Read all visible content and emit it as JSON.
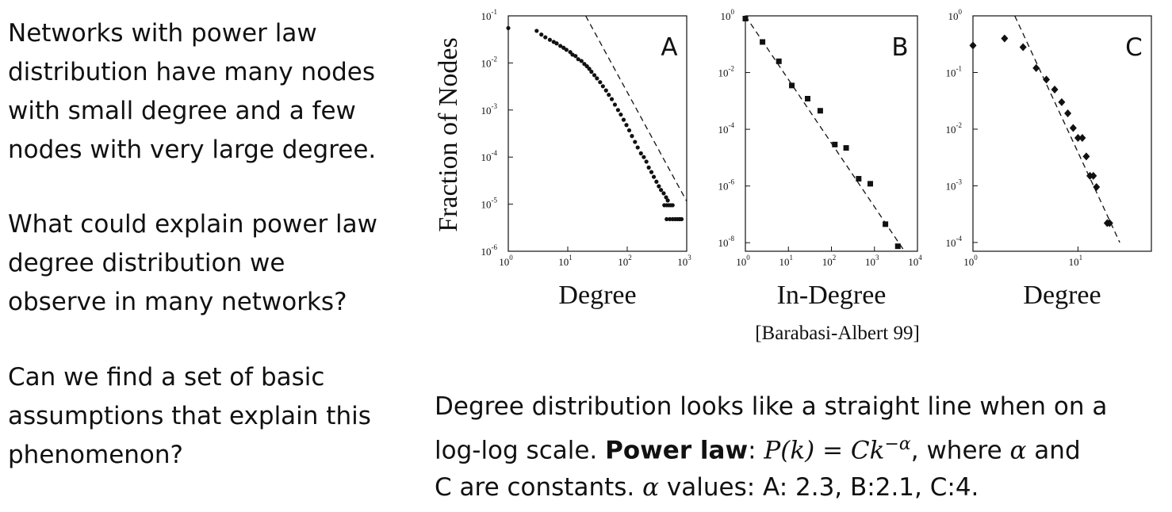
{
  "left_text": {
    "p1": [
      "Networks with power law",
      "distribution have many nodes",
      "with small degree and a few",
      "nodes with very large degree."
    ],
    "p2": [
      "What could explain power law",
      "degree distribution we",
      "observe in many networks?"
    ],
    "p3": [
      "Can we find a set of basic",
      "assumptions that explain this",
      "phenomenon?"
    ]
  },
  "citation": "[Barabasi-Albert 99]",
  "bottom_text": {
    "line1": "Degree distribution looks like a straight line when on a",
    "line2_pre": "log-log scale. ",
    "power_law": "Power law",
    "colon": ": ",
    "formula": "P(k) = Ck",
    "exponent": "−α",
    "line2_post": ", where ",
    "alpha": "α",
    "and": " and",
    "line3_c": "C",
    "line3_mid": " are constants. ",
    "line3_alpha": "α",
    "line3_values": " values:  A: 2.3, B:2.1, C:4."
  },
  "chart_data": [
    {
      "type": "scatter",
      "panel_label": "A",
      "title": "",
      "xlabel": "Degree",
      "ylabel": "Fraction of Nodes",
      "xscale": "log",
      "yscale": "log",
      "xlim": [
        1,
        1000
      ],
      "ylim": [
        1e-06,
        0.1
      ],
      "xticks": [
        {
          "v": 1,
          "label": "10",
          "exp": "0"
        },
        {
          "v": 10,
          "label": "10",
          "exp": "1"
        },
        {
          "v": 100,
          "label": "10",
          "exp": "2"
        },
        {
          "v": 1000,
          "label": "10",
          "exp": "3"
        }
      ],
      "yticks": [
        {
          "v": 1e-06,
          "label": "10",
          "exp": "-6"
        },
        {
          "v": 1e-05,
          "label": "10",
          "exp": "-5"
        },
        {
          "v": 0.0001,
          "label": "10",
          "exp": "-4"
        },
        {
          "v": 0.001,
          "label": "10",
          "exp": "-3"
        },
        {
          "v": 0.01,
          "label": "10",
          "exp": "-2"
        },
        {
          "v": 0.1,
          "label": "10",
          "exp": "-1"
        }
      ],
      "marker": "circle",
      "points": [
        [
          1,
          0.055
        ],
        [
          3,
          0.048
        ],
        [
          3.6,
          0.04
        ],
        [
          4.2,
          0.035
        ],
        [
          5,
          0.031
        ],
        [
          5.8,
          0.028
        ],
        [
          6.5,
          0.026
        ],
        [
          7.5,
          0.023
        ],
        [
          8.5,
          0.021
        ],
        [
          9.5,
          0.019
        ],
        [
          11,
          0.017
        ],
        [
          12,
          0.015
        ],
        [
          13.5,
          0.014
        ],
        [
          15,
          0.012
        ],
        [
          17,
          0.011
        ],
        [
          19,
          0.0095
        ],
        [
          21,
          0.0085
        ],
        [
          23,
          0.0075
        ],
        [
          25,
          0.0065
        ],
        [
          28,
          0.0055
        ],
        [
          31,
          0.0047
        ],
        [
          35,
          0.0039
        ],
        [
          39,
          0.0032
        ],
        [
          44,
          0.0026
        ],
        [
          49,
          0.0021
        ],
        [
          55,
          0.0017
        ],
        [
          62,
          0.0013
        ],
        [
          70,
          0.001
        ],
        [
          78,
          0.0008
        ],
        [
          87,
          0.00062
        ],
        [
          97,
          0.00048
        ],
        [
          108,
          0.00037
        ],
        [
          120,
          0.00028
        ],
        [
          135,
          0.00021
        ],
        [
          150,
          0.00016
        ],
        [
          170,
          0.00012
        ],
        [
          190,
          0.0001
        ],
        [
          210,
          8e-05
        ],
        [
          230,
          6e-05
        ],
        [
          255,
          4.8e-05
        ],
        [
          280,
          3.8e-05
        ],
        [
          310,
          3e-05
        ],
        [
          340,
          2.4e-05
        ],
        [
          370,
          2e-05
        ],
        [
          410,
          1.7e-05
        ],
        [
          450,
          1.4e-05
        ],
        [
          480,
          1.2e-05
        ],
        [
          420,
          9.5e-06
        ],
        [
          460,
          9.5e-06
        ],
        [
          500,
          9.5e-06
        ],
        [
          540,
          9.5e-06
        ],
        [
          580,
          9.5e-06
        ],
        [
          460,
          4.8e-06
        ],
        [
          520,
          4.8e-06
        ],
        [
          580,
          4.8e-06
        ],
        [
          640,
          4.8e-06
        ],
        [
          700,
          4.8e-06
        ],
        [
          760,
          4.8e-06
        ],
        [
          820,
          4.8e-06
        ]
      ],
      "fit_line": {
        "style": "dashed",
        "from": [
          20,
          0.1
        ],
        "to": [
          1000,
          1.15e-05
        ]
      },
      "alpha": 2.3
    },
    {
      "type": "scatter",
      "panel_label": "B",
      "title": "",
      "xlabel": "In-Degree",
      "ylabel": "",
      "xscale": "log",
      "yscale": "log",
      "xlim": [
        1,
        10000
      ],
      "ylim": [
        5e-09,
        1
      ],
      "xticks": [
        {
          "v": 1,
          "label": "10",
          "exp": "0"
        },
        {
          "v": 10,
          "label": "10",
          "exp": "1"
        },
        {
          "v": 100,
          "label": "10",
          "exp": "2"
        },
        {
          "v": 1000,
          "label": "10",
          "exp": "3"
        },
        {
          "v": 10000,
          "label": "10",
          "exp": "4"
        }
      ],
      "yticks": [
        {
          "v": 1,
          "label": "10",
          "exp": "0"
        },
        {
          "v": 0.01,
          "label": "10",
          "exp": "-2"
        },
        {
          "v": 0.0001,
          "label": "10",
          "exp": "-4"
        },
        {
          "v": 1e-06,
          "label": "10",
          "exp": "-6"
        },
        {
          "v": 1e-08,
          "label": "10",
          "exp": "-8"
        }
      ],
      "marker": "square",
      "points": [
        [
          1,
          0.8
        ],
        [
          2.5,
          0.12
        ],
        [
          6,
          0.025
        ],
        [
          12,
          0.0035
        ],
        [
          28,
          0.0012
        ],
        [
          55,
          0.00045
        ],
        [
          120,
          2.9e-05
        ],
        [
          220,
          2.2e-05
        ],
        [
          430,
          1.8e-06
        ],
        [
          800,
          1.2e-06
        ],
        [
          1800,
          4.5e-08
        ],
        [
          3500,
          7.5e-09
        ]
      ],
      "fit_line": {
        "style": "dashed",
        "from": [
          1,
          1
        ],
        "to": [
          5000,
          5e-09
        ]
      },
      "alpha": 2.1
    },
    {
      "type": "scatter",
      "panel_label": "C",
      "title": "",
      "xlabel": "Degree",
      "ylabel": "",
      "xscale": "log",
      "yscale": "log",
      "xlim": [
        1,
        50
      ],
      "ylim": [
        7e-05,
        1
      ],
      "xticks": [
        {
          "v": 1,
          "label": "10",
          "exp": "0"
        },
        {
          "v": 10,
          "label": "10",
          "exp": "1"
        }
      ],
      "yticks": [
        {
          "v": 1,
          "label": "10",
          "exp": "0"
        },
        {
          "v": 0.1,
          "label": "10",
          "exp": "-1"
        },
        {
          "v": 0.01,
          "label": "10",
          "exp": "-2"
        },
        {
          "v": 0.001,
          "label": "10",
          "exp": "-3"
        },
        {
          "v": 0.0001,
          "label": "10",
          "exp": "-4"
        }
      ],
      "marker": "diamond",
      "points": [
        [
          1,
          0.3
        ],
        [
          2,
          0.4
        ],
        [
          3,
          0.28
        ],
        [
          4,
          0.12
        ],
        [
          5,
          0.075
        ],
        [
          6,
          0.05
        ],
        [
          7,
          0.03
        ],
        [
          8,
          0.019
        ],
        [
          9,
          0.0105
        ],
        [
          10,
          0.007
        ],
        [
          11,
          0.007
        ],
        [
          12,
          0.0033
        ],
        [
          13,
          0.0015
        ],
        [
          14,
          0.0015
        ],
        [
          15,
          0.00095
        ],
        [
          19,
          0.00022
        ],
        [
          20,
          0.00022
        ]
      ],
      "fit_line": {
        "style": "dashed",
        "from": [
          2.5,
          1
        ],
        "to": [
          25,
          0.0001
        ]
      },
      "alpha": 4
    }
  ]
}
